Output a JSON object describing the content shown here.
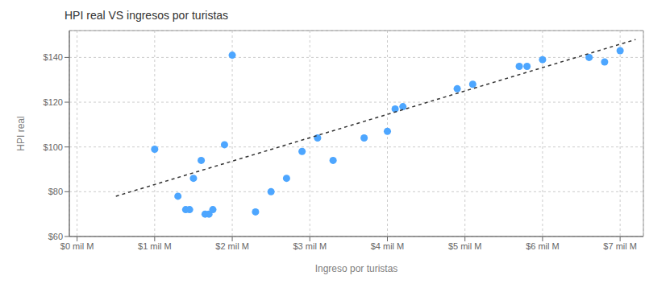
{
  "chart_data": {
    "type": "scatter",
    "title": "HPI real VS ingresos por turistas",
    "xlabel": "Ingreso por turistas",
    "ylabel": "HPI real",
    "series": [
      {
        "type": "scatter",
        "color": "#4da6ff",
        "marker": "circle",
        "x": [
          1000000,
          1300000,
          1400000,
          1450000,
          1500000,
          1600000,
          1650000,
          1700000,
          1750000,
          1900000,
          2000000,
          2300000,
          2500000,
          2700000,
          2900000,
          3100000,
          3300000,
          3700000,
          4000000,
          4100000,
          4200000,
          4900000,
          5100000,
          5700000,
          5800000,
          6000000,
          6600000,
          6800000,
          7000000
        ],
        "values": [
          99,
          78,
          72,
          72,
          86,
          94,
          70,
          70,
          72,
          101,
          141,
          71,
          80,
          86,
          98,
          104,
          94,
          104,
          107,
          117,
          118,
          126,
          128,
          136,
          136,
          139,
          140,
          138,
          143
        ]
      },
      {
        "type": "line",
        "color": "#333333",
        "line_style": "dashed",
        "x": [
          500000,
          7200000
        ],
        "values": [
          78,
          148
        ]
      }
    ],
    "xlim": [
      -100000,
      7300000
    ],
    "ylim": [
      60,
      152
    ],
    "xticks": [
      {
        "value": 0,
        "label": "$0 mil M"
      },
      {
        "value": 1000000,
        "label": "$1 mil M"
      },
      {
        "value": 2000000,
        "label": "$2 mil M"
      },
      {
        "value": 3000000,
        "label": "$3 mil M"
      },
      {
        "value": 4000000,
        "label": "$4 mil M"
      },
      {
        "value": 5000000,
        "label": "$5 mil M"
      },
      {
        "value": 6000000,
        "label": "$6 mil M"
      },
      {
        "value": 7000000,
        "label": "$7 mil M"
      }
    ],
    "yticks": [
      {
        "value": 60,
        "label": "$60"
      },
      {
        "value": 80,
        "label": "$80"
      },
      {
        "value": 100,
        "label": "$100"
      },
      {
        "value": 120,
        "label": "$120"
      },
      {
        "value": 140,
        "label": "$140"
      }
    ],
    "grid": true
  }
}
